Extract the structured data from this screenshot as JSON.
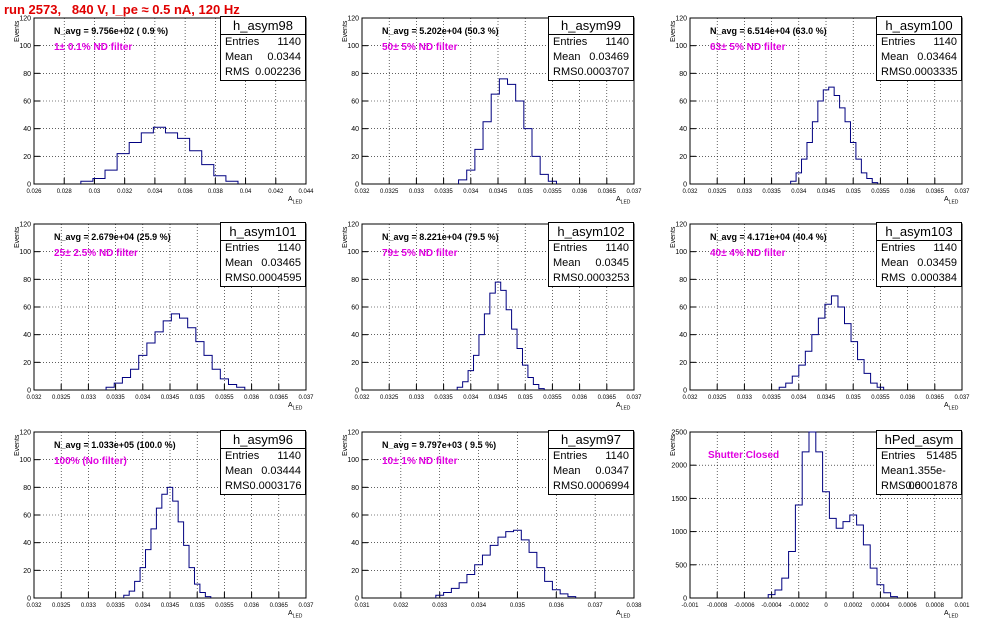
{
  "title": "run 2573,   840 V, I_pe ≈ 0.5 nA, 120 Hz",
  "labels": {
    "entries": "Entries",
    "mean": "Mean",
    "rms": "RMS",
    "y_axis": "Events",
    "x_axis": "A",
    "x_axis_sub": "LED"
  },
  "chart_data": [
    {
      "type": "histogram",
      "name": "h_asym98",
      "n_avg": "N_avg = 9.756e+02 ( 0.9 %)",
      "filter": "1± 0.1% ND filter",
      "entries": "1140",
      "mean": "0.0344",
      "rms": "0.002236",
      "xlim": [
        0.026,
        0.044
      ],
      "ylim": [
        0,
        120
      ],
      "xticks": [
        "0.026",
        "0.028",
        "0.03",
        "0.032",
        "0.034",
        "0.036",
        "0.038",
        "0.04",
        "0.042",
        "0.044"
      ],
      "yticks": [
        "0",
        "20",
        "40",
        "60",
        "80",
        "100",
        "120"
      ],
      "x": [
        0.0295,
        0.0303,
        0.0311,
        0.0319,
        0.0327,
        0.0335,
        0.0343,
        0.0351,
        0.0359,
        0.0367,
        0.0375,
        0.0383,
        0.0391
      ],
      "y": [
        2,
        4,
        10,
        22,
        30,
        37,
        41,
        37,
        33,
        24,
        14,
        6,
        2
      ]
    },
    {
      "type": "histogram",
      "name": "h_asym99",
      "n_avg": "N_avg = 5.202e+04 (50.3 %)",
      "filter": "50± 5% ND filter",
      "entries": "1140",
      "mean": "0.03469",
      "rms": "0.0003707",
      "xlim": [
        0.032,
        0.037
      ],
      "ylim": [
        0,
        120
      ],
      "xticks": [
        "0.032",
        "0.0325",
        "0.033",
        "0.0335",
        "0.034",
        "0.0345",
        "0.035",
        "0.0355",
        "0.036",
        "0.0365",
        "0.037"
      ],
      "yticks": [
        "0",
        "20",
        "40",
        "60",
        "80",
        "100",
        "120"
      ],
      "x": [
        0.03385,
        0.034,
        0.03415,
        0.0343,
        0.03445,
        0.0346,
        0.03475,
        0.0349,
        0.03505,
        0.0352,
        0.03535,
        0.0355
      ],
      "y": [
        3,
        10,
        25,
        45,
        65,
        76,
        72,
        60,
        40,
        20,
        7,
        2
      ]
    },
    {
      "type": "histogram",
      "name": "h_asym100",
      "n_avg": "N_avg = 6.514e+04 (63.0 %)",
      "filter": "63± 5% ND filter",
      "entries": "1140",
      "mean": "0.03464",
      "rms": "0.0003335",
      "xlim": [
        0.032,
        0.037
      ],
      "ylim": [
        0,
        120
      ],
      "xticks": [
        "0.032",
        "0.0325",
        "0.033",
        "0.0335",
        "0.034",
        "0.0345",
        "0.035",
        "0.0355",
        "0.036",
        "0.0365",
        "0.037"
      ],
      "yticks": [
        "0",
        "20",
        "40",
        "60",
        "80",
        "100",
        "120"
      ],
      "x": [
        0.0339,
        0.034,
        0.0341,
        0.0342,
        0.0343,
        0.0344,
        0.0345,
        0.0346,
        0.0347,
        0.0348,
        0.0349,
        0.035,
        0.0351,
        0.0352,
        0.0353,
        0.0354
      ],
      "y": [
        2,
        8,
        18,
        30,
        45,
        60,
        68,
        70,
        64,
        55,
        45,
        30,
        18,
        8,
        4,
        1
      ]
    },
    {
      "type": "histogram",
      "name": "h_asym101",
      "n_avg": "N_avg = 2.679e+04 (25.9 %)",
      "filter": "25± 2.5% ND filter",
      "entries": "1140",
      "mean": "0.03465",
      "rms": "0.0004595",
      "xlim": [
        0.032,
        0.037
      ],
      "ylim": [
        0,
        120
      ],
      "xticks": [
        "0.032",
        "0.0325",
        "0.033",
        "0.0335",
        "0.034",
        "0.0345",
        "0.035",
        "0.0355",
        "0.036",
        "0.0365",
        "0.037"
      ],
      "yticks": [
        "0",
        "20",
        "40",
        "60",
        "80",
        "100",
        "120"
      ],
      "x": [
        0.0334,
        0.03355,
        0.0337,
        0.03385,
        0.034,
        0.03415,
        0.0343,
        0.03445,
        0.0346,
        0.03475,
        0.0349,
        0.03505,
        0.0352,
        0.03535,
        0.0355,
        0.03565,
        0.0358
      ],
      "y": [
        2,
        5,
        9,
        15,
        25,
        34,
        42,
        50,
        55,
        52,
        45,
        35,
        25,
        15,
        8,
        4,
        2
      ]
    },
    {
      "type": "histogram",
      "name": "h_asym102",
      "n_avg": "N_avg = 8.221e+04 (79.5 %)",
      "filter": "79± 5% ND filter",
      "entries": "1140",
      "mean": "0.0345",
      "rms": "0.0003253",
      "xlim": [
        0.032,
        0.037
      ],
      "ylim": [
        0,
        120
      ],
      "xticks": [
        "0.032",
        "0.0325",
        "0.033",
        "0.0335",
        "0.034",
        "0.0345",
        "0.035",
        "0.0355",
        "0.036",
        "0.0365",
        "0.037"
      ],
      "yticks": [
        "0",
        "20",
        "40",
        "60",
        "80",
        "100",
        "120"
      ],
      "x": [
        0.0338,
        0.0339,
        0.034,
        0.0341,
        0.0342,
        0.0343,
        0.0344,
        0.0345,
        0.0346,
        0.0347,
        0.0348,
        0.0349,
        0.035,
        0.0351,
        0.0352,
        0.0353
      ],
      "y": [
        2,
        6,
        14,
        25,
        40,
        55,
        70,
        78,
        72,
        58,
        44,
        30,
        18,
        9,
        4,
        1
      ]
    },
    {
      "type": "histogram",
      "name": "h_asym103",
      "n_avg": "N_avg = 4.171e+04 (40.4 %)",
      "filter": "40± 4% ND filter",
      "entries": "1140",
      "mean": "0.03459",
      "rms": "0.000384",
      "xlim": [
        0.032,
        0.037
      ],
      "ylim": [
        0,
        120
      ],
      "xticks": [
        "0.032",
        "0.0325",
        "0.033",
        "0.0335",
        "0.034",
        "0.0345",
        "0.035",
        "0.0355",
        "0.036",
        "0.0365",
        "0.037"
      ],
      "yticks": [
        "0",
        "20",
        "40",
        "60",
        "80",
        "100",
        "120"
      ],
      "x": [
        0.0337,
        0.03382,
        0.03394,
        0.03406,
        0.03418,
        0.0343,
        0.03442,
        0.03454,
        0.03466,
        0.03478,
        0.0349,
        0.03502,
        0.03514,
        0.03526,
        0.03538,
        0.0355
      ],
      "y": [
        2,
        5,
        10,
        18,
        28,
        40,
        52,
        62,
        68,
        60,
        48,
        35,
        22,
        12,
        5,
        2
      ]
    },
    {
      "type": "histogram",
      "name": "h_asym96",
      "n_avg": "N_avg = 1.033e+05 (100.0 %)",
      "filter": "100% (No filter)",
      "entries": "1140",
      "mean": "0.03444",
      "rms": "0.0003176",
      "xlim": [
        0.032,
        0.037
      ],
      "ylim": [
        0,
        120
      ],
      "xticks": [
        "0.032",
        "0.0325",
        "0.033",
        "0.0335",
        "0.034",
        "0.0345",
        "0.035",
        "0.0355",
        "0.036",
        "0.0365",
        "0.037"
      ],
      "yticks": [
        "0",
        "20",
        "40",
        "60",
        "80",
        "100",
        "120"
      ],
      "x": [
        0.0337,
        0.0338,
        0.0339,
        0.034,
        0.0341,
        0.0342,
        0.0343,
        0.0344,
        0.0345,
        0.0346,
        0.0347,
        0.0348,
        0.0349,
        0.035,
        0.0351,
        0.0352
      ],
      "y": [
        2,
        5,
        12,
        22,
        35,
        50,
        65,
        75,
        80,
        70,
        55,
        38,
        22,
        10,
        4,
        1
      ]
    },
    {
      "type": "histogram",
      "name": "h_asym97",
      "n_avg": "N_avg = 9.797e+03 ( 9.5 %)",
      "filter": "10± 1% ND filter",
      "entries": "1140",
      "mean": "0.0347",
      "rms": "0.0006994",
      "xlim": [
        0.031,
        0.038
      ],
      "ylim": [
        0,
        120
      ],
      "xticks": [
        "0.031",
        "0.032",
        "0.033",
        "0.034",
        "0.035",
        "0.036",
        "0.037",
        "0.038"
      ],
      "yticks": [
        "0",
        "20",
        "40",
        "60",
        "80",
        "100",
        "120"
      ],
      "x": [
        0.033,
        0.0332,
        0.0334,
        0.0336,
        0.0338,
        0.034,
        0.0342,
        0.0344,
        0.0346,
        0.0348,
        0.035,
        0.0352,
        0.0354,
        0.0356,
        0.0358,
        0.036,
        0.0362,
        0.0364
      ],
      "y": [
        2,
        4,
        7,
        11,
        17,
        24,
        31,
        38,
        44,
        48,
        49,
        42,
        33,
        22,
        12,
        6,
        3,
        1
      ]
    },
    {
      "type": "histogram",
      "name": "hPed_asym",
      "n_avg": "",
      "filter": "Shutter Closed",
      "entries": "51485",
      "mean": "1.355e-06",
      "rms": "0.0001878",
      "xlim": [
        -0.001,
        0.001
      ],
      "ylim": [
        0,
        2500
      ],
      "xticks": [
        "-0.001",
        "-0.0008",
        "-0.0006",
        "-0.0004",
        "-0.0002",
        "0",
        "0.0002",
        "0.0004",
        "0.0006",
        "0.0008",
        "0.001"
      ],
      "yticks": [
        "0",
        "500",
        "1000",
        "1500",
        "2000",
        "2500"
      ],
      "x": [
        -0.0004,
        -0.00035,
        -0.0003,
        -0.00025,
        -0.0002,
        -0.00015,
        -0.0001,
        -5e-05,
        0.0,
        5e-05,
        0.0001,
        0.00015,
        0.0002,
        0.00025,
        0.0003,
        0.00035,
        0.0004,
        0.00045,
        0.0005
      ],
      "y": [
        50,
        120,
        300,
        700,
        1400,
        2200,
        2500,
        2200,
        1600,
        1200,
        1050,
        1150,
        1250,
        1100,
        800,
        450,
        200,
        80,
        20
      ]
    }
  ]
}
